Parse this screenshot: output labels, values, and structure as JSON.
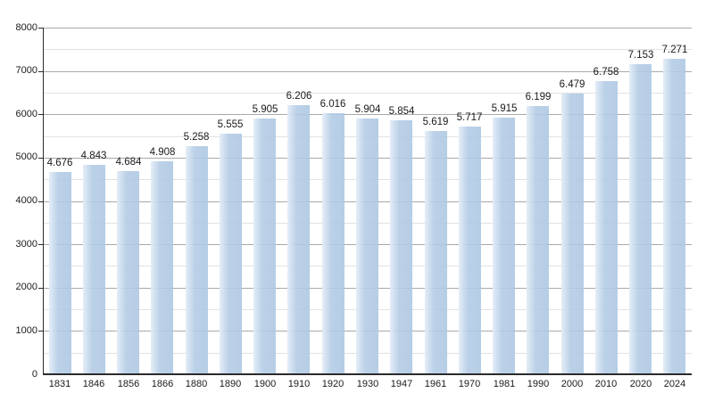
{
  "chart_data": {
    "type": "bar",
    "title": "",
    "xlabel": "",
    "ylabel": "",
    "categories": [
      "1831",
      "1846",
      "1856",
      "1866",
      "1880",
      "1890",
      "1900",
      "1910",
      "1920",
      "1930",
      "1947",
      "1961",
      "1970",
      "1981",
      "1990",
      "2000",
      "2010",
      "2020",
      "2024"
    ],
    "values": [
      4676,
      4843,
      4684,
      4908,
      5258,
      5555,
      5905,
      6206,
      6016,
      5904,
      5854,
      5619,
      5717,
      5915,
      6199,
      6479,
      6758,
      7153,
      7271
    ],
    "value_labels": [
      "4.676",
      "4.843",
      "4.684",
      "4.908",
      "5.258",
      "5.555",
      "5.905",
      "6.206",
      "6.016",
      "5.904",
      "5.854",
      "5.619",
      "5.717",
      "5.915",
      "6.199",
      "6.479",
      "6.758",
      "7.153",
      "7.271"
    ],
    "ylim": [
      0,
      8000
    ],
    "y_major_step": 1000,
    "y_minor_step": 500,
    "y_tick_labels": [
      "0",
      "1000",
      "2000",
      "3000",
      "4000",
      "5000",
      "6000",
      "7000",
      "8000"
    ],
    "grid": true,
    "legend": null,
    "colors": {
      "bar_main": "#b2cbe5",
      "bar_light_edge": "#e4edf7",
      "major_grid": "#a9a9a9",
      "minor_grid": "#e2e2e2",
      "axis": "#2b2b2b",
      "text": "#1a1a1a",
      "background": "#ffffff"
    }
  }
}
